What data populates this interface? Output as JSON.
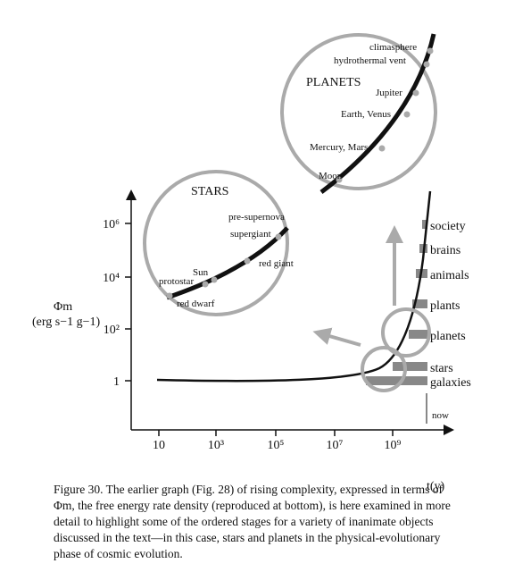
{
  "axis": {
    "y_label": "Φm",
    "y_unit": "(erg s−1 g−1)",
    "x_label": "t(y)",
    "yticks": [
      "10⁶",
      "10⁴",
      "10²",
      "1"
    ],
    "xticks": [
      "10",
      "10³",
      "10⁵",
      "10⁷",
      "10⁹"
    ]
  },
  "stages": [
    "society",
    "brains",
    "animals",
    "plants",
    "planets",
    "stars",
    "galaxies"
  ],
  "now": "now",
  "stars": {
    "title": "STARS",
    "labels": [
      "pre-supernova",
      "supergiant",
      "red giant",
      "Sun",
      "protostar",
      "red dwarf"
    ]
  },
  "planets": {
    "title": "PLANETS",
    "labels": [
      "climasphere",
      "hydrothermal vent",
      "Jupiter",
      "Earth, Venus",
      "Mercury, Mars",
      "Moon"
    ]
  },
  "caption": [
    "Figure 30. The earlier graph (Fig. 28) of rising complexity, expressed in terms of",
    "Φm, the free energy rate density (reproduced at bottom), is here examined in more",
    "detail to highlight some of the ordered stages for a variety of inanimate objects",
    "discussed in the text—in this case, stars and planets in the physical-evolutionary",
    "phase of cosmic evolution."
  ]
}
